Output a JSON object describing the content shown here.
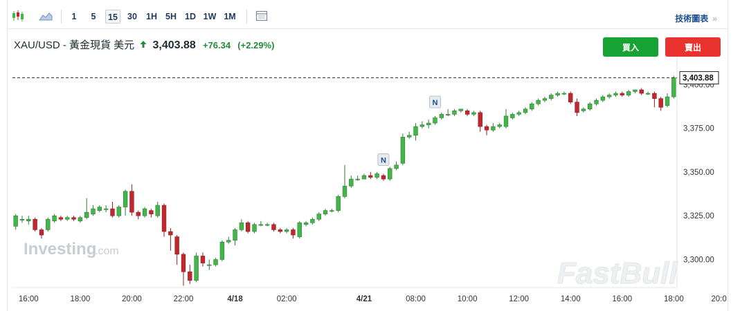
{
  "toolbar": {
    "icons": [
      "candlestick-icon",
      "area-chart-icon",
      "calendar-icon"
    ],
    "intervals": [
      "1",
      "5",
      "15",
      "30",
      "1H",
      "5H",
      "1D",
      "1W",
      "1M"
    ],
    "active_interval": "15",
    "tech_link": "技術圖表",
    "tech_chevron": "»"
  },
  "quote": {
    "symbol": "XAU/USD - 黃金現貨 美元",
    "price": "3,403.88",
    "change": "+76.34",
    "change_pct": "(+2.29%)",
    "direction": "up",
    "up_color": "#218a3c"
  },
  "buttons": {
    "buy": "買入",
    "sell": "賣出",
    "buy_color": "#17a334",
    "sell_color": "#e8332e"
  },
  "watermarks": {
    "left": "Investing",
    "left_suffix": ".com",
    "right": "FastBull"
  },
  "chart_data": {
    "type": "candlestick",
    "ylim": [
      3284,
      3412
    ],
    "y_ticks": [
      3300,
      3325,
      3350,
      3375,
      3400
    ],
    "y_tick_labels": [
      "3,300.00",
      "3,325.00",
      "3,350.00",
      "3,375.00",
      "3,400.00"
    ],
    "x_ticks": [
      {
        "index": 2,
        "label": "16:00"
      },
      {
        "index": 10,
        "label": "18:00"
      },
      {
        "index": 18,
        "label": "20:00"
      },
      {
        "index": 26,
        "label": "22:00"
      },
      {
        "index": 34,
        "label": "4/18"
      },
      {
        "index": 42,
        "label": "02:00"
      },
      {
        "index": 54,
        "label": "4/21"
      },
      {
        "index": 62,
        "label": "08:00"
      },
      {
        "index": 70,
        "label": "10:00"
      },
      {
        "index": 78,
        "label": "12:00"
      },
      {
        "index": 86,
        "label": "14:00"
      },
      {
        "index": 94,
        "label": "16:00"
      },
      {
        "index": 102,
        "label": "18:00"
      },
      {
        "index": 109,
        "label": "20:0"
      }
    ],
    "last_price": 3403.88,
    "last_price_label": "3,403.88",
    "up_color": "#43b649",
    "down_color": "#c0282d",
    "markers": [
      {
        "index": 57,
        "label": "N"
      },
      {
        "index": 65,
        "label": "N"
      }
    ],
    "candles": [
      [
        3319,
        3325,
        3317,
        3326
      ],
      [
        3323,
        3323,
        3321,
        3325
      ],
      [
        3322,
        3323,
        3320,
        3325
      ],
      [
        3323,
        3317,
        3316,
        3324
      ],
      [
        3317,
        3314,
        3312,
        3318
      ],
      [
        3317,
        3323,
        3316,
        3324
      ],
      [
        3322,
        3325,
        3321,
        3326
      ],
      [
        3324,
        3323,
        3322,
        3325
      ],
      [
        3323,
        3324,
        3322,
        3325
      ],
      [
        3324,
        3323,
        3322,
        3325
      ],
      [
        3322,
        3324,
        3321,
        3325
      ],
      [
        3324,
        3327,
        3323,
        3335
      ],
      [
        3326,
        3329,
        3325,
        3331
      ],
      [
        3328,
        3330,
        3327,
        3331
      ],
      [
        3329,
        3329,
        3327,
        3331
      ],
      [
        3329,
        3325,
        3324,
        3333
      ],
      [
        3325,
        3330,
        3324,
        3331
      ],
      [
        3330,
        3339,
        3325,
        3340
      ],
      [
        3339,
        3327,
        3325,
        3343
      ],
      [
        3327,
        3325,
        3323,
        3328
      ],
      [
        3325,
        3329,
        3324,
        3330
      ],
      [
        3328,
        3326,
        3324,
        3329
      ],
      [
        3325,
        3331,
        3324,
        3333
      ],
      [
        3331,
        3316,
        3313,
        3332
      ],
      [
        3316,
        3314,
        3305,
        3318
      ],
      [
        3313,
        3303,
        3297,
        3314
      ],
      [
        3303,
        3293,
        3285,
        3304
      ],
      [
        3293,
        3288,
        3286,
        3297
      ],
      [
        3288,
        3302,
        3287,
        3304
      ],
      [
        3302,
        3298,
        3296,
        3304
      ],
      [
        3297,
        3297,
        3294,
        3300
      ],
      [
        3297,
        3300,
        3296,
        3301
      ],
      [
        3300,
        3310,
        3299,
        3311
      ],
      [
        3310,
        3311,
        3309,
        3313
      ],
      [
        3311,
        3317,
        3308,
        3318
      ],
      [
        3317,
        3321,
        3316,
        3323
      ],
      [
        3321,
        3316,
        3315,
        3322
      ],
      [
        3316,
        3320,
        3315,
        3321
      ],
      [
        3320,
        3320,
        3319,
        3322
      ],
      [
        3320,
        3320,
        3319,
        3321
      ],
      [
        3320,
        3317,
        3316,
        3321
      ],
      [
        3317,
        3316,
        3315,
        3318
      ],
      [
        3316,
        3317,
        3315,
        3318
      ],
      [
        3317,
        3314,
        3312,
        3318
      ],
      [
        3313,
        3321,
        3312,
        3322
      ],
      [
        3320,
        3321,
        3319,
        3322
      ],
      [
        3321,
        3323,
        3320,
        3324
      ],
      [
        3323,
        3326,
        3322,
        3327
      ],
      [
        3326,
        3328,
        3325,
        3329
      ],
      [
        3328,
        3328,
        3327,
        3329
      ],
      [
        3328,
        3336,
        3327,
        3337
      ],
      [
        3336,
        3342,
        3335,
        3354
      ],
      [
        3342,
        3346,
        3341,
        3348
      ],
      [
        3346,
        3346,
        3345,
        3348
      ],
      [
        3346,
        3348,
        3346,
        3349
      ],
      [
        3348,
        3347,
        3346,
        3350
      ],
      [
        3347,
        3349,
        3346,
        3350
      ],
      [
        3348,
        3346,
        3345,
        3349
      ],
      [
        3346,
        3352,
        3345,
        3353
      ],
      [
        3352,
        3354,
        3351,
        3356
      ],
      [
        3355,
        3370,
        3354,
        3372
      ],
      [
        3370,
        3371,
        3369,
        3373
      ],
      [
        3371,
        3376,
        3368,
        3378
      ],
      [
        3376,
        3377,
        3375,
        3379
      ],
      [
        3377,
        3378,
        3375,
        3380
      ],
      [
        3378,
        3381,
        3377,
        3382
      ],
      [
        3381,
        3383,
        3380,
        3384
      ],
      [
        3383,
        3383,
        3382,
        3386
      ],
      [
        3383,
        3385,
        3382,
        3386
      ],
      [
        3385,
        3386,
        3384,
        3386
      ],
      [
        3385,
        3383,
        3382,
        3386
      ],
      [
        3383,
        3384,
        3382,
        3385
      ],
      [
        3384,
        3376,
        3373,
        3385
      ],
      [
        3376,
        3374,
        3371,
        3377
      ],
      [
        3374,
        3376,
        3373,
        3378
      ],
      [
        3376,
        3377,
        3375,
        3378
      ],
      [
        3376,
        3382,
        3375,
        3386
      ],
      [
        3381,
        3383,
        3380,
        3384
      ],
      [
        3383,
        3384,
        3382,
        3385
      ],
      [
        3384,
        3386,
        3383,
        3387
      ],
      [
        3386,
        3389,
        3385,
        3390
      ],
      [
        3389,
        3391,
        3388,
        3392
      ],
      [
        3391,
        3392,
        3390,
        3393
      ],
      [
        3392,
        3394,
        3391,
        3395
      ],
      [
        3394,
        3395,
        3393,
        3396
      ],
      [
        3395,
        3395,
        3394,
        3396
      ],
      [
        3395,
        3390,
        3389,
        3396
      ],
      [
        3390,
        3384,
        3382,
        3392
      ],
      [
        3385,
        3386,
        3384,
        3387
      ],
      [
        3386,
        3389,
        3385,
        3390
      ],
      [
        3389,
        3391,
        3388,
        3392
      ],
      [
        3391,
        3393,
        3390,
        3394
      ],
      [
        3393,
        3394,
        3392,
        3395
      ],
      [
        3394,
        3395,
        3393,
        3396
      ],
      [
        3395,
        3394,
        3393,
        3396
      ],
      [
        3394,
        3396,
        3393,
        3397
      ],
      [
        3396,
        3397,
        3395,
        3397
      ],
      [
        3397,
        3395,
        3394,
        3398
      ],
      [
        3395,
        3395,
        3394,
        3396
      ],
      [
        3395,
        3392,
        3387,
        3396
      ],
      [
        3392,
        3387,
        3385,
        3393
      ],
      [
        3388,
        3393,
        3387,
        3395
      ],
      [
        3393,
        3403.88,
        3392,
        3405
      ]
    ]
  }
}
